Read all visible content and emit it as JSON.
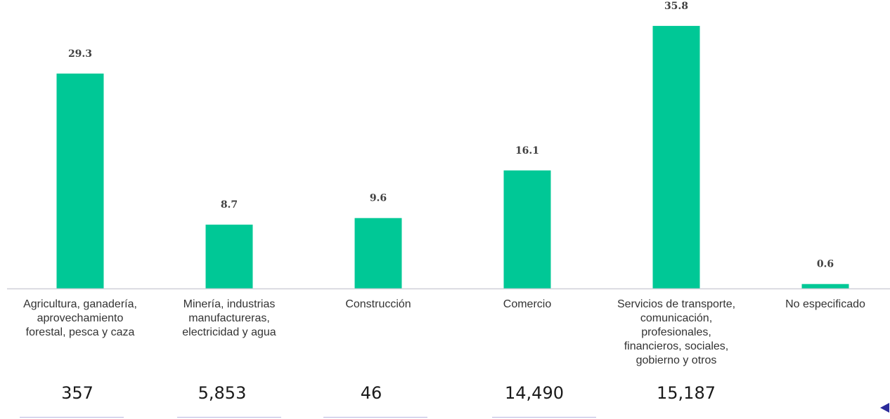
{
  "chart_data": {
    "type": "bar",
    "title": "",
    "xlabel": "",
    "ylabel": "",
    "ylim": [
      0,
      38
    ],
    "grid": false,
    "categories": [
      "Agricultura, ganadería,\naprovechamiento\nforestal, pesca y caza",
      "Minería, industrias\nmanufactureras,\nelectricidad y agua",
      "Construcción",
      "Comercio",
      "Servicios de transporte,\ncomunicación,\nprofesionales,\nfinancieros, sociales,\ngobierno y otros",
      "No especificado"
    ],
    "values": [
      29.3,
      8.7,
      9.6,
      16.1,
      35.8,
      0.6
    ],
    "value_labels": [
      "29.3",
      "8.7",
      "9.6",
      "16.1",
      "35.8",
      "0.6"
    ],
    "bar_color": "#00c896",
    "axis_color": "#cfcfd8"
  },
  "bottom_numbers": [
    "357",
    "5,853",
    "46",
    "14,490",
    "15,187"
  ],
  "tabs_active_index": 2,
  "accent_color": "#3b3bb5",
  "nav_icon": "triangle-left-icon"
}
